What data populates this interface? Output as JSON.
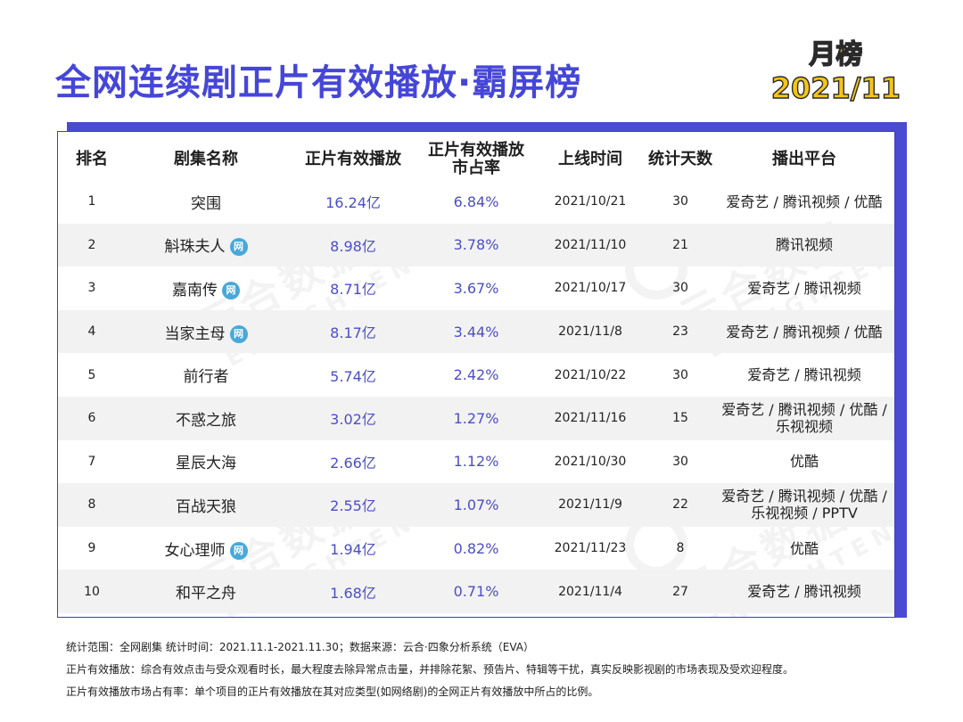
{
  "title": "全网连续剧正片有效播放·霸屏榜",
  "badge": {
    "line1": "月榜",
    "line2": "2021/11"
  },
  "watermark": {
    "cn": "云合数据",
    "en": "ENLIGHTENT"
  },
  "colors": {
    "title": "#4546d8",
    "accent_bar": "#4a4bd1",
    "value_text": "#4b4ec7",
    "badge_fill": "#f5c518",
    "net_icon": "#4aa8d8"
  },
  "icons": {
    "net_exclusive": "网"
  },
  "table": {
    "headers": {
      "rank": "排名",
      "name": "剧集名称",
      "plays": "正片有效播放",
      "share_line1": "正片有效播放",
      "share_line2": "市占率",
      "date": "上线时间",
      "days": "统计天数",
      "platform": "播出平台"
    },
    "rows": [
      {
        "rank": "1",
        "name": "突围",
        "net": false,
        "plays": "16.24亿",
        "share": "6.84%",
        "date": "2021/10/21",
        "days": "30",
        "platform": "爱奇艺 / 腾讯视频 / 优酷"
      },
      {
        "rank": "2",
        "name": "斛珠夫人",
        "net": true,
        "plays": "8.98亿",
        "share": "3.78%",
        "date": "2021/11/10",
        "days": "21",
        "platform": "腾讯视频"
      },
      {
        "rank": "3",
        "name": "嘉南传",
        "net": true,
        "plays": "8.71亿",
        "share": "3.67%",
        "date": "2021/10/17",
        "days": "30",
        "platform": "爱奇艺 / 腾讯视频"
      },
      {
        "rank": "4",
        "name": "当家主母",
        "net": true,
        "plays": "8.17亿",
        "share": "3.44%",
        "date": "2021/11/8",
        "days": "23",
        "platform": "爱奇艺 / 腾讯视频 / 优酷"
      },
      {
        "rank": "5",
        "name": "前行者",
        "net": false,
        "plays": "5.74亿",
        "share": "2.42%",
        "date": "2021/10/22",
        "days": "30",
        "platform": "爱奇艺 / 腾讯视频"
      },
      {
        "rank": "6",
        "name": "不惑之旅",
        "net": false,
        "plays": "3.02亿",
        "share": "1.27%",
        "date": "2021/11/16",
        "days": "15",
        "platform": "爱奇艺 / 腾讯视频 / 优酷 /\n乐视视频"
      },
      {
        "rank": "7",
        "name": "星辰大海",
        "net": false,
        "plays": "2.66亿",
        "share": "1.12%",
        "date": "2021/10/30",
        "days": "30",
        "platform": "优酷"
      },
      {
        "rank": "8",
        "name": "百战天狼",
        "net": false,
        "plays": "2.55亿",
        "share": "1.07%",
        "date": "2021/11/9",
        "days": "22",
        "platform": "爱奇艺 / 腾讯视频 / 优酷 /\n乐视视频 / PPTV"
      },
      {
        "rank": "9",
        "name": "女心理师",
        "net": true,
        "plays": "1.94亿",
        "share": "0.82%",
        "date": "2021/11/23",
        "days": "8",
        "platform": "优酷"
      },
      {
        "rank": "10",
        "name": "和平之舟",
        "net": false,
        "plays": "1.68亿",
        "share": "0.71%",
        "date": "2021/11/4",
        "days": "27",
        "platform": "爱奇艺 / 腾讯视频"
      }
    ]
  },
  "notes": {
    "line1": "统计范围：全网剧集    统计时间：2021.11.1-2021.11.30；数据来源：云合·四象分析系统（EVA）",
    "line2": "正片有效播放：综合有效点击与受众观看时长，最大程度去除异常点击量，并排除花絮、预告片、特辑等干扰，真实反映影视剧的市场表现及受欢迎程度。",
    "line3": "正片有效播放市场占有率：单个项目的正片有效播放在其对应类型(如网络剧)的全网正片有效播放中所占的比例。"
  }
}
